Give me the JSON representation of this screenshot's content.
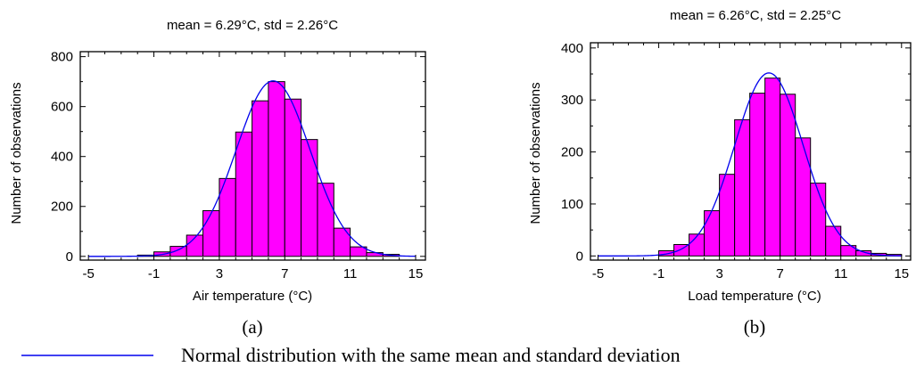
{
  "chart_data": [
    {
      "panel_label": "(a)",
      "type": "bar",
      "title": "mean = 6.29°C, std = 2.26°C",
      "xlabel": "Air temperature (°C)",
      "ylabel": "Number of observations",
      "xlim": [
        -5.5,
        15.6
      ],
      "ylim": [
        -15,
        820
      ],
      "xticks": [
        -5,
        -1,
        3,
        7,
        11,
        15
      ],
      "yticks": [
        0,
        200,
        400,
        600,
        800
      ],
      "bin_width": 1,
      "bin_centers": [
        -1.5,
        -0.5,
        0.5,
        1.5,
        2.5,
        3.5,
        4.5,
        5.5,
        6.5,
        7.5,
        8.5,
        9.5,
        10.5,
        11.5,
        12.5,
        13.5
      ],
      "values": [
        5,
        18,
        40,
        85,
        183,
        312,
        498,
        623,
        700,
        630,
        468,
        293,
        113,
        38,
        15,
        8
      ],
      "normal_curve": {
        "mean": 6.29,
        "std": 2.26,
        "peak": 703
      },
      "grid": false,
      "bar_color": "#ff00ff",
      "curve_color": "#0000ee"
    },
    {
      "panel_label": "(b)",
      "type": "bar",
      "title": "mean = 6.26°C, std = 2.25°C",
      "xlabel": "Load temperature (°C)",
      "ylabel": "Number of observations",
      "xlim": [
        -5.5,
        15.6
      ],
      "ylim": [
        -8,
        410
      ],
      "xticks": [
        -5,
        -1,
        3,
        7,
        11,
        15
      ],
      "yticks": [
        0,
        100,
        200,
        300,
        400
      ],
      "bin_width": 1,
      "bin_centers": [
        -0.5,
        0.5,
        1.5,
        2.5,
        3.5,
        4.5,
        5.5,
        6.5,
        7.5,
        8.5,
        9.5,
        10.5,
        11.5,
        12.5,
        13.5,
        14.5
      ],
      "values": [
        10,
        22,
        42,
        87,
        157,
        262,
        313,
        342,
        311,
        227,
        140,
        57,
        20,
        10,
        5,
        3
      ],
      "normal_curve": {
        "mean": 6.26,
        "std": 2.25,
        "peak": 352
      },
      "grid": false,
      "bar_color": "#ff00ff",
      "curve_color": "#0000ee"
    }
  ],
  "legend": {
    "text": "Normal distribution with the same mean and standard deviation",
    "line_color": "#0000ee"
  }
}
